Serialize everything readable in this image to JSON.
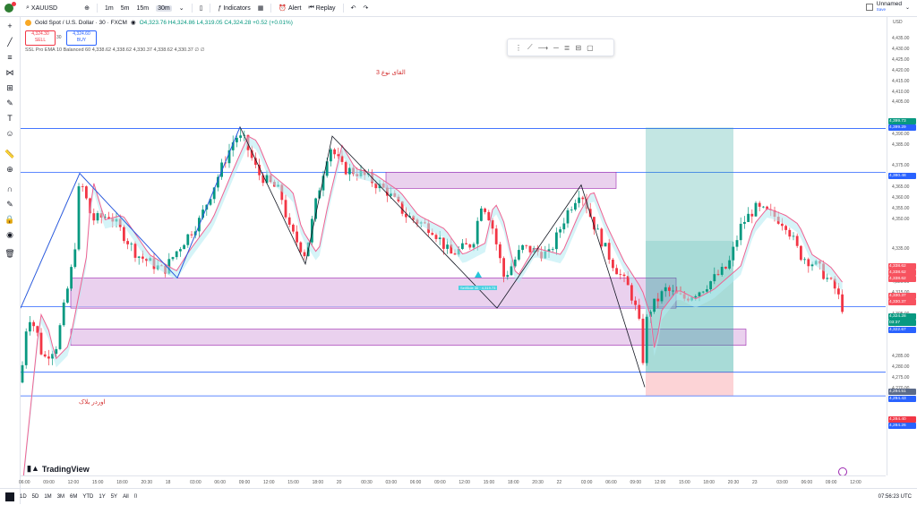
{
  "header": {
    "symbol": "XAUUSD",
    "indicators_label": "Indicators",
    "alert_label": "Alert",
    "replay_label": "Replay",
    "timeframes": [
      "1m",
      "5m",
      "15m",
      "30m"
    ],
    "layout_name": "Unnamed",
    "layout_status": "Save",
    "currency": "USD"
  },
  "legend": {
    "title": "Gold Spot / U.S. Dollar · 30 · FXCM",
    "ohlc": "O4,323.76 H4,324.86 L4,319.05 C4,324.28 +0.52 (+0.01%)",
    "sell_price": "4,324.30",
    "sell_label": "SELL",
    "spread": "30",
    "buy_price": "4,324.60",
    "buy_label": "BUY",
    "indicator": "SSL Pro EMA 10 Balanced 60  4,338.62  4,338.62  4,330.37  4,338.62  4,330.37  ∅  ∅"
  },
  "annotations": {
    "top": "القای نوع 3",
    "bottom": "اوردر بلاک",
    "label_box": "SellSide 30 · 4,319.73"
  },
  "price_axis": {
    "ticks": [
      "4,435.00",
      "4,430.00",
      "4,425.00",
      "4,420.00",
      "4,415.00",
      "4,410.00",
      "4,405.00",
      "4,395.00",
      "4,390.00",
      "4,385.00",
      "4,375.00",
      "4,370.00",
      "4,365.00",
      "4,360.00",
      "4,355.00",
      "4,350.00",
      "4,335.00",
      "4,320.00",
      "4,315.00",
      "4,310.00",
      "4,305.00",
      "4,300.00",
      "4,285.00",
      "4,280.00",
      "4,275.00",
      "4,270.00",
      "4,265.00"
    ],
    "labels": [
      {
        "t": "4,399.73",
        "c": "#089981"
      },
      {
        "t": "4,399.29",
        "c": "#2962ff"
      },
      {
        "t": "4,380.48",
        "c": "#2962ff"
      },
      {
        "t": "4,338.62",
        "c": "#f7525f"
      },
      {
        "t": "4,338.62",
        "c": "#f7525f"
      },
      {
        "t": "4,338.62",
        "c": "#f7525f"
      },
      {
        "t": "4,330.37",
        "c": "#f7525f"
      },
      {
        "t": "4,330.37",
        "c": "#f7525f"
      },
      {
        "t": "4,324.28",
        "c": "#089981"
      },
      {
        "t": "03:37",
        "c": "#089981"
      },
      {
        "t": "4,322.67",
        "c": "#2962ff"
      },
      {
        "t": "4,294.51",
        "c": "#5b6b8a"
      },
      {
        "t": "4,294.43",
        "c": "#2962ff"
      },
      {
        "t": "4,284.40",
        "c": "#f23645"
      },
      {
        "t": "4,284.26",
        "c": "#2962ff"
      }
    ]
  },
  "time_axis": [
    "06:00",
    "09:00",
    "12:00",
    "15:00",
    "18:00",
    "20:30",
    "18",
    "03:00",
    "06:00",
    "09:00",
    "12:00",
    "15:00",
    "18:00",
    "20",
    "00:30",
    "03:00",
    "06:00",
    "09:00",
    "12:00",
    "15:00",
    "18:00",
    "20:30",
    "22",
    "03:00",
    "06:00",
    "09:00",
    "12:00",
    "15:00",
    "18:00",
    "20:30",
    "23",
    "03:00",
    "06:00",
    "09:00",
    "12:00"
  ],
  "bottom": {
    "ranges": [
      "1D",
      "5D",
      "1M",
      "3M",
      "6M",
      "YTD",
      "1Y",
      "5Y",
      "All"
    ],
    "clock": "07:56:23 UTC"
  },
  "brand": "TradingView",
  "colors": {
    "up": "#089981",
    "down": "#f23645",
    "zone": "#e1bee7",
    "cloud_up": "#b2ebf2",
    "cloud_down": "#f8bbd0"
  }
}
